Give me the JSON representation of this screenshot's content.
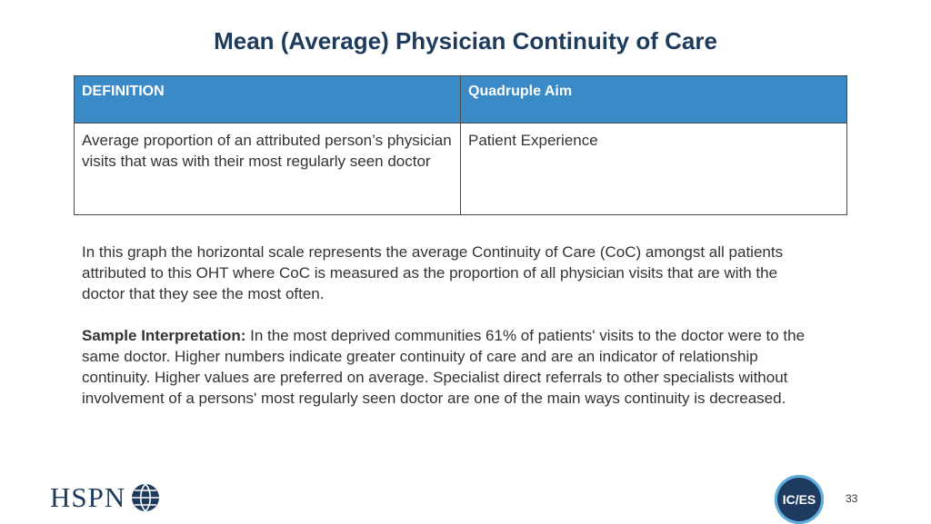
{
  "title": "Mean (Average) Physician Continuity of Care",
  "table": {
    "headers": [
      "DEFINITION",
      "Quadruple Aim"
    ],
    "rows": [
      [
        "Average proportion of an attributed person’s physician visits that was with their most regularly seen doctor",
        "Patient Experience"
      ]
    ]
  },
  "body": {
    "paragraph1": "In this graph the horizontal scale represents the average Continuity of Care (CoC) amongst all patients attributed to this OHT where CoC is measured as the proportion of all physician visits that are with the doctor that they see the most often.",
    "interpretation_label": "Sample Interpretation:",
    "interpretation_text": " In the most deprived communities 61% of patients' visits to the doctor were to the same doctor. Higher numbers indicate greater continuity of care and are an indicator of relationship continuity. Higher values are preferred on average. Specialist direct referrals to other specialists without involvement of a persons' most regularly seen doctor are one of the main ways continuity is decreased."
  },
  "footer": {
    "left_logo_text": "HSPN",
    "right_logo_text": "IC/ES",
    "page_number": "33",
    "colors": {
      "navy": "#1f3b5c",
      "header_blue": "#3a8ac8",
      "ices_ring": "#5fb0e0"
    },
    "icons": [
      "globe-icon"
    ]
  }
}
